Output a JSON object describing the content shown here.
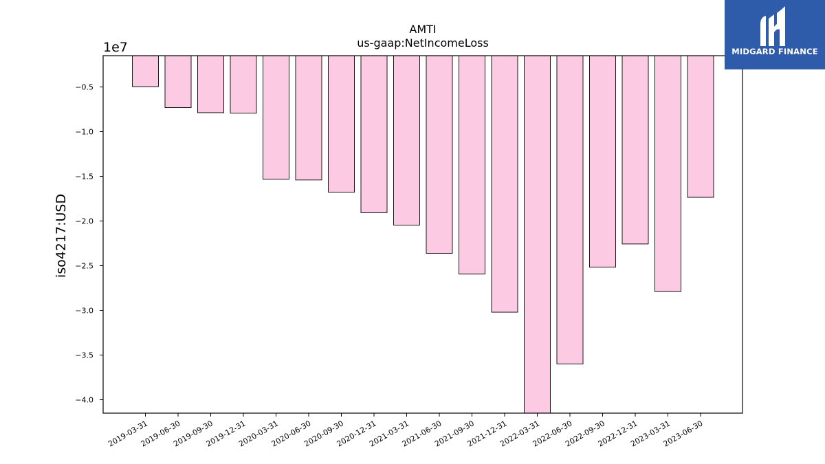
{
  "chart_data": {
    "type": "bar",
    "title": "AMTI",
    "subtitle": "us-gaap:NetIncomeLoss",
    "ylabel": "iso4217:USD",
    "offset_label": "1e7",
    "categories": [
      "2019-03-31",
      "2019-06-30",
      "2019-09-30",
      "2019-12-31",
      "2020-03-31",
      "2020-06-30",
      "2020-09-30",
      "2020-12-31",
      "2021-03-31",
      "2021-06-30",
      "2021-09-30",
      "2021-12-31",
      "2022-03-31",
      "2022-06-30",
      "2022-09-30",
      "2022-12-31",
      "2023-03-31",
      "2023-06-30"
    ],
    "values": [
      -4960000,
      -7310000,
      -7880000,
      -7930000,
      -15330000,
      -15410000,
      -16780000,
      -19070000,
      -20460000,
      -23620000,
      -25940000,
      -30200000,
      -41800000,
      -36000000,
      -25170000,
      -22570000,
      -27900000,
      -17350000
    ],
    "ylim": [
      -41500000,
      -1500000
    ],
    "yticks": [
      -5000000,
      -10000000,
      -15000000,
      -20000000,
      -25000000,
      -30000000,
      -35000000,
      -40000000
    ],
    "ytick_labels": [
      "−0.5",
      "−1.0",
      "−1.5",
      "−2.0",
      "−2.5",
      "−3.0",
      "−3.5",
      "−4.0"
    ],
    "bar_color": "#fccae3",
    "edge_color": "#000000",
    "grid": false,
    "legend": "none"
  },
  "logo": {
    "text": "MIDGARD FINANCE",
    "background": "#2f5bab"
  }
}
